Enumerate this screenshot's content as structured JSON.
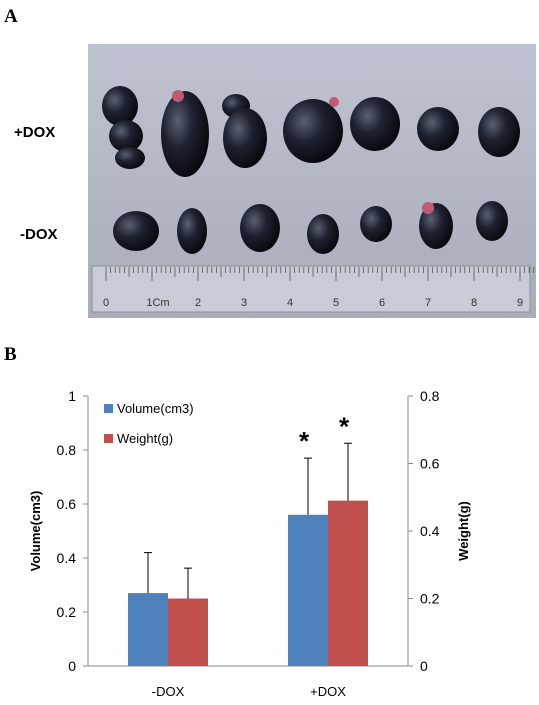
{
  "panel_a": {
    "letter": "A",
    "row_labels": [
      "+DOX",
      "-DOX"
    ],
    "ruler_labels": [
      "0",
      "1Cm",
      "2",
      "3",
      "4",
      "5",
      "6",
      "7",
      "8",
      "9"
    ]
  },
  "panel_b": {
    "letter": "B"
  },
  "chart_data": {
    "type": "bar",
    "categories": [
      "-DOX",
      "+DOX"
    ],
    "series": [
      {
        "name": "Volume(cm3)",
        "axis": "left",
        "values": [
          0.27,
          0.56
        ],
        "errors": [
          0.15,
          0.21
        ],
        "color": "#4F81BD"
      },
      {
        "name": "Weight(g)",
        "axis": "right",
        "values": [
          0.2,
          0.49
        ],
        "errors": [
          0.09,
          0.17
        ],
        "color": "#C0504D"
      }
    ],
    "ylabel": "Volume(cm3)",
    "ylabel_right": "Weight(g)",
    "ylim": [
      0,
      1
    ],
    "ylim_right": [
      0,
      0.8
    ],
    "yticks": [
      "0",
      "0.2",
      "0.4",
      "0.6",
      "0.8",
      "1"
    ],
    "yticks_right": [
      "0",
      "0.2",
      "0.4",
      "0.6",
      "0.8"
    ],
    "significance": [
      "",
      "*"
    ],
    "grid": false,
    "legend": "top-left"
  }
}
